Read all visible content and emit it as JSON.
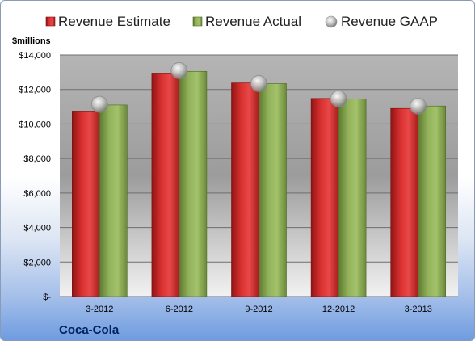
{
  "chart_data": {
    "type": "bar",
    "title": "",
    "ylabel": "$millions",
    "company": "Coca-Cola",
    "categories": [
      "3-2012",
      "6-2012",
      "9-2012",
      "12-2012",
      "3-2013"
    ],
    "series": [
      {
        "name": "Revenue Estimate",
        "kind": "bar",
        "color": "#d42a2a",
        "values": [
          10750,
          12950,
          12380,
          11480,
          10900
        ]
      },
      {
        "name": "Revenue Actual",
        "kind": "bar",
        "color": "#8cab55",
        "values": [
          11100,
          13050,
          12340,
          11450,
          11040
        ]
      },
      {
        "name": "Revenue GAAP",
        "kind": "marker",
        "color": "#c9c9c9",
        "values": [
          11140,
          13090,
          12340,
          11460,
          11040
        ]
      }
    ],
    "ylim": [
      0,
      14000
    ],
    "yticks": [
      0,
      2000,
      4000,
      6000,
      8000,
      10000,
      12000,
      14000
    ],
    "ytick_labels": [
      "$-",
      "$2,000",
      "$4,000",
      "$6,000",
      "$8,000",
      "$10,000",
      "$12,000",
      "$14,000"
    ],
    "grid": true,
    "legend": "top"
  }
}
